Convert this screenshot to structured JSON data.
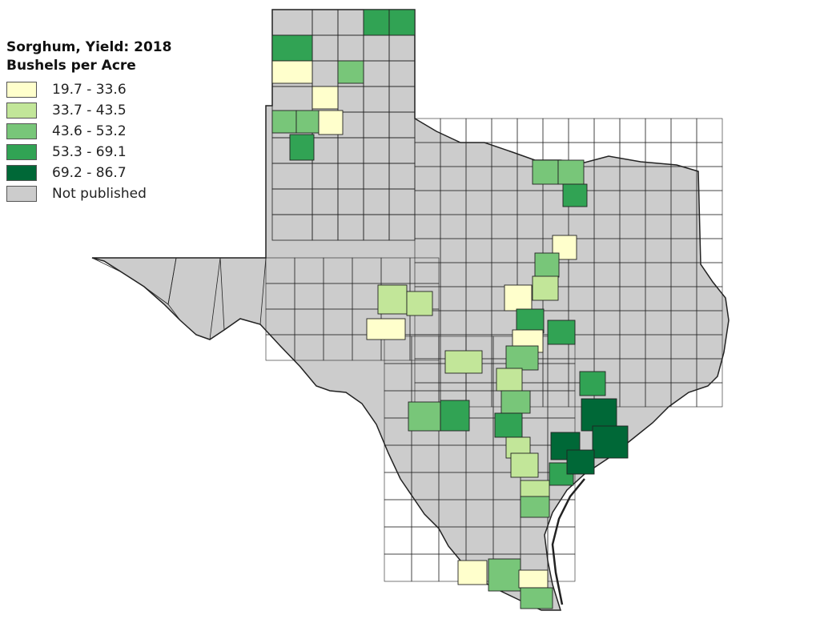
{
  "map": {
    "title": "Sorghum, Yield: 2018",
    "subtitle": "Bushels per Acre",
    "region": "Texas counties",
    "border_color": "#222222",
    "default_fill": "#cccccc",
    "background": "#ffffff",
    "legend": [
      {
        "label": "19.7 - 33.6",
        "color": "#ffffcc"
      },
      {
        "label": "33.7 - 43.5",
        "color": "#c2e699"
      },
      {
        "label": "43.6 - 53.2",
        "color": "#78c679"
      },
      {
        "label": "53.3 - 69.1",
        "color": "#31a354"
      },
      {
        "label": "69.2 - 86.7",
        "color": "#006837"
      },
      {
        "label": "Not published",
        "color": "#cccccc"
      }
    ]
  }
}
